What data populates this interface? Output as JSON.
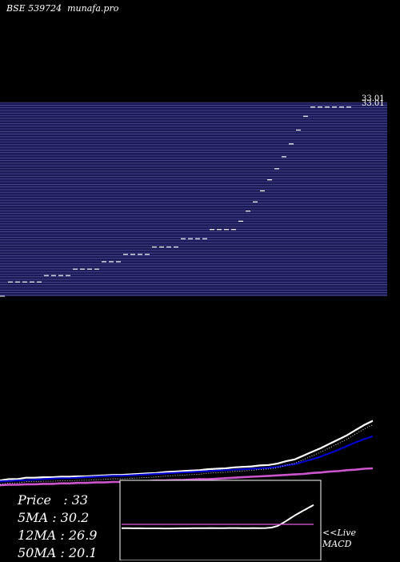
{
  "header": {
    "title": "BSE 539724  munafa.pro"
  },
  "colors": {
    "background": "#000000",
    "band": "#1a1a55",
    "band_line": "#5a5aa8",
    "price_line": "#ffffff",
    "ma5": "#ffffff",
    "ma12": "#0000cc",
    "ma50": "#cc55cc",
    "macd": "#ffffff",
    "macd_signal": "#cc55cc"
  },
  "price_axis_labels": [
    "33.01",
    "33.01"
  ],
  "stats": {
    "price_label": "Price   : 33",
    "ma5_label": "5MA : 30.2",
    "ma12_label": "12MA : 26.9",
    "ma50_label": "50MA : 20.1"
  },
  "macd_panel": {
    "live_label": "<<Live",
    "macd_label": "MACD"
  },
  "chart_data": [
    {
      "type": "line",
      "title": "BSE 539724",
      "description_of_marks": "price steps (upper panel)",
      "x": [
        1,
        2,
        3,
        4,
        5,
        6,
        7,
        8,
        9,
        10,
        11,
        12,
        13,
        14,
        15,
        16,
        17,
        18,
        19,
        20,
        21,
        22,
        23,
        24,
        25,
        26,
        27,
        28,
        29,
        30,
        31,
        32,
        33,
        34,
        35,
        36,
        37,
        38,
        39,
        40,
        41,
        42,
        43,
        44,
        45,
        46,
        47,
        48
      ],
      "series": [
        {
          "values": [
            14.0,
            14.0,
            14.0,
            14.0,
            14.0,
            14.7,
            14.7,
            14.7,
            14.7,
            15.4,
            15.4,
            15.4,
            15.4,
            16.2,
            16.2,
            16.2,
            17.0,
            17.0,
            17.0,
            17.0,
            17.8,
            17.8,
            17.8,
            17.8,
            18.7,
            18.7,
            18.7,
            18.7,
            19.7,
            19.7,
            19.7,
            19.7,
            20.6,
            21.7,
            22.7,
            23.9,
            25.1,
            26.3,
            27.6,
            29.0,
            30.5,
            32.0,
            33.0,
            33.0,
            33.0,
            33.0,
            33.0,
            33.0
          ]
        }
      ]
    },
    {
      "type": "line",
      "description_of_marks": "moving averages (middle panel)",
      "series": [
        {
          "name": "5MA",
          "values": [
            17.5,
            17.8,
            17.8,
            18.1,
            18.1,
            18.2,
            18.2,
            18.3,
            18.3,
            18.4,
            18.4,
            18.5,
            18.6,
            18.7,
            18.7,
            18.8,
            18.9,
            19.0,
            19.1,
            19.3,
            19.4,
            19.5,
            19.6,
            19.7,
            19.9,
            20.0,
            20.1,
            20.3,
            20.4,
            20.5,
            20.7,
            20.8,
            21.1,
            21.6,
            22.0,
            22.8,
            23.6,
            24.4,
            25.3,
            26.2,
            27.1,
            28.2,
            29.3,
            30.2
          ]
        },
        {
          "name": "12MA",
          "values": [
            17.3,
            17.4,
            17.5,
            17.6,
            17.7,
            17.8,
            17.9,
            18.0,
            18.0,
            18.1,
            18.2,
            18.3,
            18.4,
            18.5,
            18.5,
            18.6,
            18.7,
            18.8,
            18.9,
            19.0,
            19.1,
            19.2,
            19.3,
            19.4,
            19.5,
            19.6,
            19.7,
            19.8,
            19.9,
            20.0,
            20.1,
            20.2,
            20.4,
            20.7,
            21.0,
            21.5,
            22.0,
            22.6,
            23.3,
            24.0,
            24.8,
            25.6,
            26.3,
            26.9
          ]
        },
        {
          "name": "50MA",
          "values": [
            16.5,
            16.6,
            16.6,
            16.7,
            16.7,
            16.8,
            16.8,
            16.9,
            16.9,
            17.0,
            17.0,
            17.1,
            17.1,
            17.2,
            17.2,
            17.3,
            17.3,
            17.4,
            17.5,
            17.5,
            17.6,
            17.6,
            17.7,
            17.8,
            17.8,
            17.9,
            18.0,
            18.1,
            18.2,
            18.3,
            18.4,
            18.5,
            18.6,
            18.7,
            18.8,
            18.9,
            19.1,
            19.2,
            19.4,
            19.5,
            19.7,
            19.8,
            20.0,
            20.1
          ]
        }
      ]
    },
    {
      "type": "line",
      "title": "MACD",
      "series": [
        {
          "values": [
            0.1,
            0.1,
            0.09,
            0.09,
            0.08,
            0.08,
            0.08,
            0.07,
            0.07,
            0.08,
            0.09,
            0.09,
            0.1,
            0.1,
            0.1,
            0.11,
            0.1,
            0.1,
            0.11,
            0.11,
            0.1,
            0.1,
            0.11,
            0.1,
            0.11,
            0.15,
            0.3,
            0.6,
            0.95,
            1.3,
            1.6,
            1.9,
            2.2
          ]
        },
        {
          "values": [
            0.45,
            0.45,
            0.45,
            0.45,
            0.45,
            0.45,
            0.45,
            0.45,
            0.45,
            0.45,
            0.45,
            0.45,
            0.45,
            0.45,
            0.45,
            0.45,
            0.45,
            0.45,
            0.45,
            0.45,
            0.45,
            0.45,
            0.45,
            0.45,
            0.45,
            0.45,
            0.45,
            0.45,
            0.45,
            0.45,
            0.45,
            0.45,
            0.45
          ]
        }
      ]
    }
  ]
}
